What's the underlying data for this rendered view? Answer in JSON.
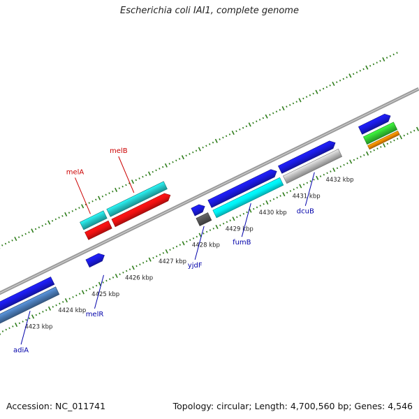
{
  "title": "Escherichia coli IAI1, complete genome",
  "footer": {
    "accession": "Accession: NC_011741",
    "summary": "Topology: circular; Length: 4,700,560 bp; Genes: 4,546"
  },
  "colors": {
    "backbone": "#888888",
    "ticks": "#2e7d1a",
    "forward_label": "#cc0000",
    "reverse_label": "#0000aa",
    "gene_blue": "#1a1ae0",
    "gene_teal": "#24c8c8",
    "gene_red": "#ee1111",
    "gene_cyan": "#00f0f5",
    "gene_gray": "#bbbbbb",
    "gene_darkgray": "#555555",
    "gene_steel": "#4a7ab5",
    "gene_green": "#33cc33",
    "gene_orange": "#ee8800"
  },
  "scale": {
    "unit": "kbp",
    "ticks": [
      {
        "pos": 4423,
        "label": "4423 kbp"
      },
      {
        "pos": 4424,
        "label": "4424 kbp"
      },
      {
        "pos": 4425,
        "label": "4425 kbp"
      },
      {
        "pos": 4426,
        "label": "4426 kbp"
      },
      {
        "pos": 4427,
        "label": "4427 kbp"
      },
      {
        "pos": 4428,
        "label": "4428 kbp"
      },
      {
        "pos": 4429,
        "label": "4429 kbp"
      },
      {
        "pos": 4430,
        "label": "4430 kbp"
      },
      {
        "pos": 4431,
        "label": "4431 kbp"
      },
      {
        "pos": 4432,
        "label": "4432 kbp"
      }
    ]
  },
  "features": [
    {
      "lane": "f1",
      "start": 4425.25,
      "end": 4425.95,
      "color": "gene_teal",
      "arrow": false
    },
    {
      "lane": "f2",
      "start": 4425.25,
      "end": 4425.95,
      "color": "gene_red",
      "arrow": false
    },
    {
      "lane": "f1",
      "start": 4426.05,
      "end": 4427.75,
      "color": "gene_teal",
      "arrow": false
    },
    {
      "lane": "f2",
      "start": 4426.05,
      "end": 4427.75,
      "color": "gene_red",
      "arrow": true
    },
    {
      "lane": "r1",
      "start": 4424.95,
      "end": 4425.45,
      "color": "gene_blue",
      "arrow": true
    },
    {
      "lane": "r1",
      "start": 4422.0,
      "end": 4423.9,
      "color": "gene_blue",
      "arrow": false
    },
    {
      "lane": "r2",
      "start": 4422.0,
      "end": 4423.9,
      "color": "gene_steel",
      "arrow": false
    },
    {
      "lane": "r1",
      "start": 4428.1,
      "end": 4428.45,
      "color": "gene_blue",
      "arrow": true
    },
    {
      "lane": "r2",
      "start": 4428.1,
      "end": 4428.45,
      "color": "gene_darkgray",
      "arrow": false
    },
    {
      "lane": "r1",
      "start": 4428.6,
      "end": 4430.6,
      "color": "gene_blue",
      "arrow": true
    },
    {
      "lane": "r2",
      "start": 4428.6,
      "end": 4430.6,
      "color": "gene_cyan",
      "arrow": false
    },
    {
      "lane": "r1",
      "start": 4430.7,
      "end": 4432.35,
      "color": "gene_blue",
      "arrow": true
    },
    {
      "lane": "r2",
      "start": 4430.7,
      "end": 4432.35,
      "color": "gene_gray",
      "arrow": false
    },
    {
      "lane": "r1",
      "start": 4433.1,
      "end": 4434.0,
      "color": "gene_blue",
      "arrow": true
    },
    {
      "lane": "r2",
      "start": 4433.1,
      "end": 4434.0,
      "color": "gene_green",
      "arrow": false
    },
    {
      "lane": "r3",
      "start": 4433.1,
      "end": 4434.0,
      "color": "gene_orange",
      "arrow": false
    }
  ],
  "gene_labels": [
    {
      "text": "melA",
      "strand": "forward",
      "pos": 4425.6
    },
    {
      "text": "melB",
      "strand": "forward",
      "pos": 4426.9
    },
    {
      "text": "adiA",
      "strand": "reverse",
      "pos": 4423.0
    },
    {
      "text": "melR",
      "strand": "reverse",
      "pos": 4425.2
    },
    {
      "text": "yjdF",
      "strand": "reverse",
      "pos": 4428.2
    },
    {
      "text": "fumB",
      "strand": "reverse",
      "pos": 4429.6
    },
    {
      "text": "dcuB",
      "strand": "reverse",
      "pos": 4431.5
    }
  ]
}
